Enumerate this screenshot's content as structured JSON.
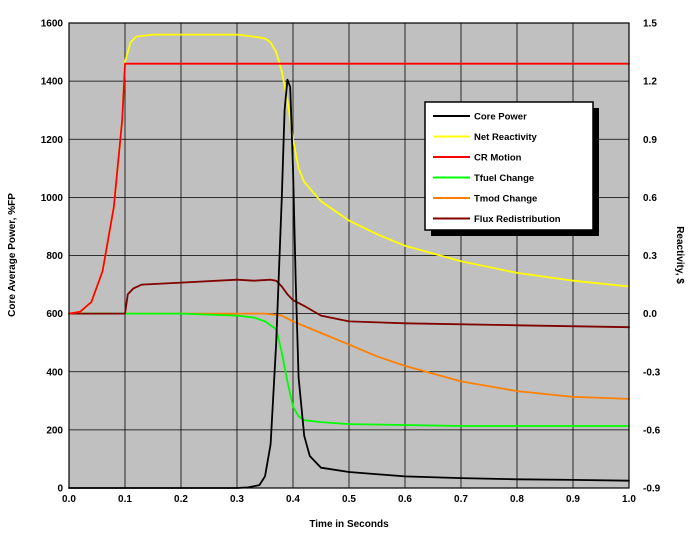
{
  "chart_data": {
    "type": "line",
    "xlabel": "Time in Seconds",
    "ylabel_left": "Core Average Power, %FP",
    "ylabel_right": "Reactivity, $",
    "xlim": [
      0.0,
      1.0
    ],
    "ylim_left": [
      0,
      1600
    ],
    "ylim_right": [
      -0.9,
      1.5
    ],
    "x_ticks": [
      "0.0",
      "0.1",
      "0.2",
      "0.3",
      "0.4",
      "0.5",
      "0.6",
      "0.7",
      "0.8",
      "0.9",
      "1.0"
    ],
    "y_left_ticks": [
      "0",
      "200",
      "400",
      "600",
      "800",
      "1000",
      "1200",
      "1400",
      "1600"
    ],
    "y_right_ticks": [
      "-0.9",
      "-0.6",
      "-0.3",
      "0.0",
      "0.3",
      "0.6",
      "0.9",
      "1.2",
      "1.5"
    ],
    "grid": true,
    "background": "#c0c0c0",
    "legend_position": "upper-right",
    "series": [
      {
        "name": "Core Power",
        "axis": "left",
        "color": "#000000",
        "points": [
          [
            0.0,
            0
          ],
          [
            0.3,
            0
          ],
          [
            0.32,
            2
          ],
          [
            0.34,
            10
          ],
          [
            0.35,
            40
          ],
          [
            0.36,
            150
          ],
          [
            0.37,
            500
          ],
          [
            0.38,
            1000
          ],
          [
            0.385,
            1300
          ],
          [
            0.39,
            1405
          ],
          [
            0.395,
            1380
          ],
          [
            0.4,
            1100
          ],
          [
            0.405,
            700
          ],
          [
            0.41,
            380
          ],
          [
            0.42,
            180
          ],
          [
            0.43,
            110
          ],
          [
            0.45,
            70
          ],
          [
            0.5,
            55
          ],
          [
            0.6,
            40
          ],
          [
            0.7,
            34
          ],
          [
            0.8,
            30
          ],
          [
            0.9,
            28
          ],
          [
            1.0,
            25
          ]
        ]
      },
      {
        "name": "Net Reactivity",
        "axis": "right",
        "color": "#ffff00",
        "points": [
          [
            0.0,
            0.0
          ],
          [
            0.02,
            0.01
          ],
          [
            0.04,
            0.06
          ],
          [
            0.06,
            0.22
          ],
          [
            0.08,
            0.55
          ],
          [
            0.095,
            1.0
          ],
          [
            0.1,
            1.3
          ],
          [
            0.11,
            1.4
          ],
          [
            0.12,
            1.43
          ],
          [
            0.15,
            1.44
          ],
          [
            0.2,
            1.44
          ],
          [
            0.3,
            1.44
          ],
          [
            0.33,
            1.43
          ],
          [
            0.35,
            1.42
          ],
          [
            0.36,
            1.4
          ],
          [
            0.37,
            1.35
          ],
          [
            0.38,
            1.25
          ],
          [
            0.39,
            1.1
          ],
          [
            0.4,
            0.9
          ],
          [
            0.41,
            0.75
          ],
          [
            0.42,
            0.68
          ],
          [
            0.45,
            0.58
          ],
          [
            0.5,
            0.48
          ],
          [
            0.55,
            0.41
          ],
          [
            0.6,
            0.35
          ],
          [
            0.7,
            0.27
          ],
          [
            0.8,
            0.21
          ],
          [
            0.9,
            0.17
          ],
          [
            1.0,
            0.14
          ]
        ]
      },
      {
        "name": "CR Motion",
        "axis": "right",
        "color": "#ff0000",
        "points": [
          [
            0.0,
            0.0
          ],
          [
            0.02,
            0.01
          ],
          [
            0.04,
            0.06
          ],
          [
            0.06,
            0.22
          ],
          [
            0.08,
            0.55
          ],
          [
            0.095,
            1.0
          ],
          [
            0.1,
            1.29
          ],
          [
            0.105,
            1.29
          ],
          [
            1.0,
            1.29
          ]
        ]
      },
      {
        "name": "Tfuel Change",
        "axis": "right",
        "color": "#00ff00",
        "points": [
          [
            0.0,
            0.0
          ],
          [
            0.2,
            0.0
          ],
          [
            0.3,
            -0.01
          ],
          [
            0.33,
            -0.02
          ],
          [
            0.35,
            -0.04
          ],
          [
            0.37,
            -0.08
          ],
          [
            0.38,
            -0.2
          ],
          [
            0.39,
            -0.35
          ],
          [
            0.4,
            -0.48
          ],
          [
            0.41,
            -0.53
          ],
          [
            0.42,
            -0.55
          ],
          [
            0.45,
            -0.56
          ],
          [
            0.5,
            -0.57
          ],
          [
            0.7,
            -0.58
          ],
          [
            1.0,
            -0.58
          ]
        ]
      },
      {
        "name": "Tmod Change",
        "axis": "right",
        "color": "#ff8000",
        "points": [
          [
            0.0,
            0.0
          ],
          [
            0.35,
            0.0
          ],
          [
            0.38,
            -0.01
          ],
          [
            0.4,
            -0.04
          ],
          [
            0.45,
            -0.1
          ],
          [
            0.5,
            -0.16
          ],
          [
            0.55,
            -0.22
          ],
          [
            0.6,
            -0.27
          ],
          [
            0.7,
            -0.35
          ],
          [
            0.8,
            -0.4
          ],
          [
            0.9,
            -0.43
          ],
          [
            1.0,
            -0.44
          ]
        ]
      },
      {
        "name": "Flux Redistribution",
        "axis": "right",
        "color": "#800000",
        "points": [
          [
            0.0,
            0.0
          ],
          [
            0.1,
            0.0
          ],
          [
            0.105,
            0.1
          ],
          [
            0.115,
            0.13
          ],
          [
            0.13,
            0.15
          ],
          [
            0.2,
            0.16
          ],
          [
            0.3,
            0.175
          ],
          [
            0.33,
            0.17
          ],
          [
            0.36,
            0.175
          ],
          [
            0.37,
            0.17
          ],
          [
            0.38,
            0.14
          ],
          [
            0.39,
            0.1
          ],
          [
            0.4,
            0.07
          ],
          [
            0.42,
            0.04
          ],
          [
            0.45,
            -0.01
          ],
          [
            0.5,
            -0.04
          ],
          [
            0.6,
            -0.05
          ],
          [
            0.8,
            -0.06
          ],
          [
            1.0,
            -0.07
          ]
        ]
      }
    ]
  }
}
